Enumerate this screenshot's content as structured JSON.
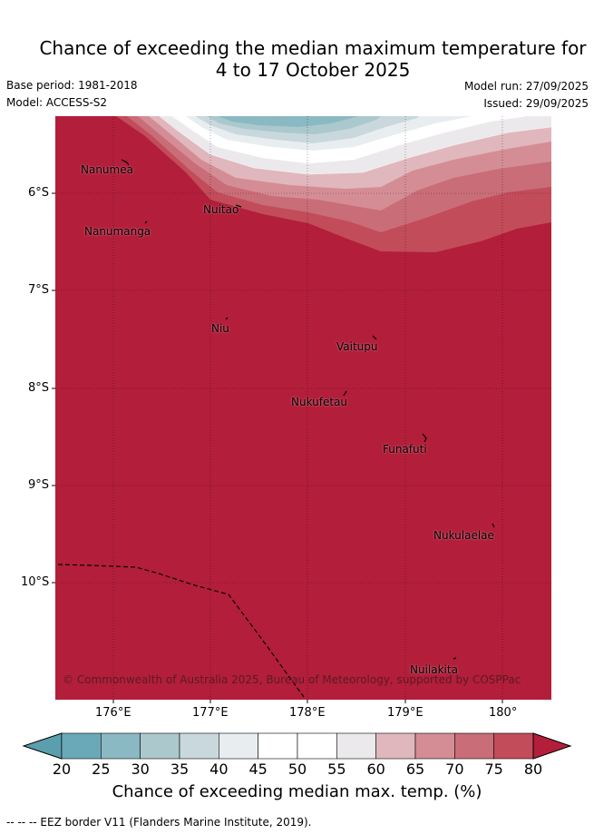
{
  "title": {
    "line1": "Chance of exceeding the median maximum temperature for",
    "line2": "4 to 17 October 2025"
  },
  "meta": {
    "base_period": "Base period: 1981-2018",
    "model": "Model: ACCESS-S2",
    "model_run": "Model run: 27/09/2025",
    "issued": "Issued: 29/09/2025"
  },
  "map": {
    "lon_ticks": [
      "176°E",
      "177°E",
      "178°E",
      "179°E",
      "180°"
    ],
    "lat_ticks": [
      "6°S",
      "7°S",
      "8°S",
      "9°S",
      "10°S"
    ],
    "islands": [
      "Nanumea",
      "Nanumanga",
      "Nuitao",
      "Niu",
      "Vaitupu",
      "Nukufetau",
      "Funafuti",
      "Nukulaelae",
      "Nuilakita"
    ],
    "copyright": "© Commonwealth of Australia 2025, Bureau of Meteorology, supported by COSPPac"
  },
  "colorbar": {
    "labels": [
      "20",
      "25",
      "30",
      "35",
      "40",
      "45",
      "50",
      "55",
      "60",
      "65",
      "70",
      "75",
      "80"
    ],
    "colors": [
      "#6aaab8",
      "#8bb9c3",
      "#abc8cd",
      "#c9d8dc",
      "#e8eef0",
      "#ffffff",
      "#ffffff",
      "#ebe9eb",
      "#e0b7bc",
      "#d48d95",
      "#c96d78",
      "#c24c5a",
      "#b31e3a"
    ],
    "title": "Chance of exceeding median max. temp. (%)"
  },
  "footer": "-- -- -- EEZ border V11 (Flanders Marine Institute, 2019)."
}
